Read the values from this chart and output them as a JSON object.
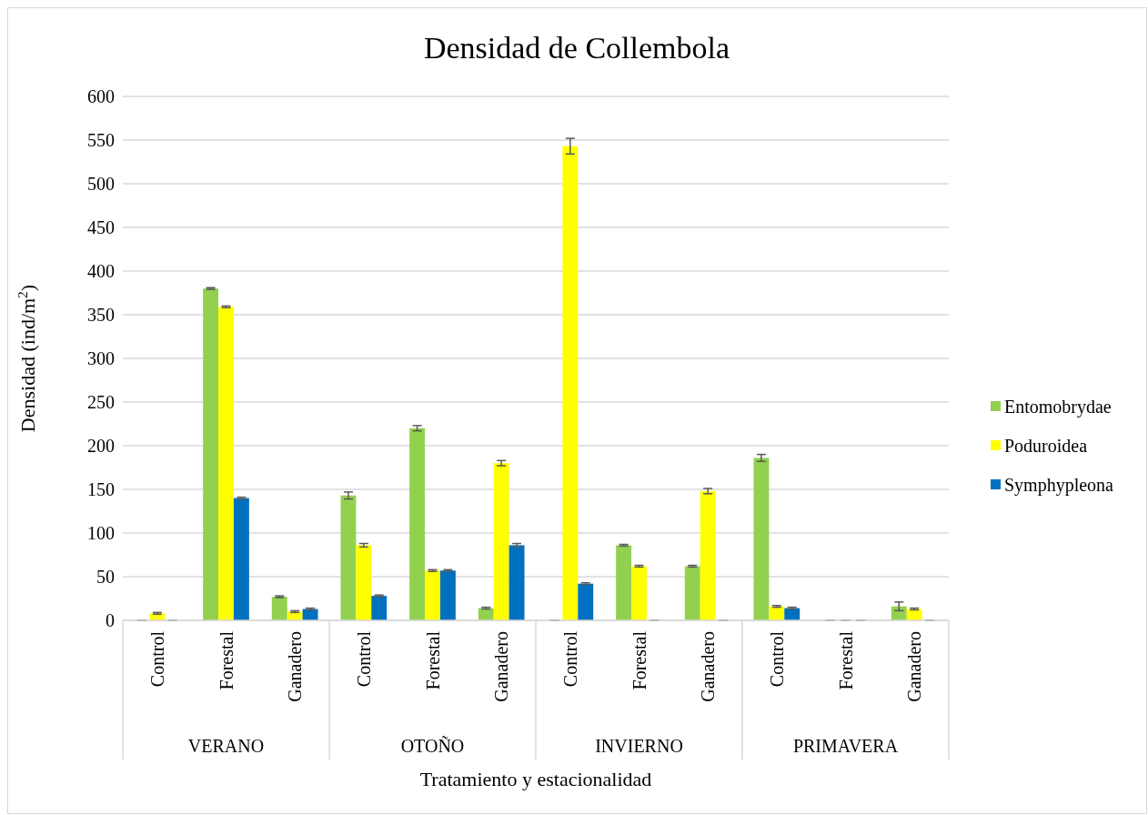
{
  "chart_data": {
    "type": "bar",
    "title": "Densidad de Collembola",
    "xlabel": "Tratamiento y estacionalidad",
    "ylabel": "Densidad (ind/m$^{2}$)",
    "categories": [
      "Control",
      "Forestal",
      "Ganadero",
      "Control",
      "Forestal",
      "Ganadero",
      "Control",
      "Forestal",
      "Ganadero",
      "Control",
      "Forestal",
      "Ganadero"
    ],
    "annotations": [
      "VERANO",
      "OTOÑO",
      "INVIERNO",
      "PRIMAVERA"
    ],
    "series": [
      {
        "name": "Entomobrydae",
        "color": "#92d050",
        "values": [
          0,
          380,
          27,
          143,
          220,
          14,
          0,
          86,
          62,
          186,
          0,
          16
        ],
        "errors": [
          0,
          1,
          1,
          4,
          3,
          1,
          0,
          1,
          1,
          4,
          0,
          5
        ]
      },
      {
        "name": "Poduroidea",
        "color": "#ffff00",
        "values": [
          8,
          359,
          10,
          86,
          57,
          180,
          543,
          62,
          148,
          16,
          0,
          13
        ],
        "errors": [
          1,
          1,
          1,
          2,
          1,
          3,
          9,
          1,
          3,
          1,
          0,
          1
        ]
      },
      {
        "name": "Symphypleona",
        "color": "#0070c0",
        "values": [
          0,
          140,
          13,
          28,
          57,
          86,
          42,
          0,
          0,
          14,
          0,
          0
        ],
        "errors": [
          0,
          1,
          1,
          1,
          1,
          2,
          1,
          0,
          0,
          1,
          0,
          0
        ]
      }
    ],
    "ylim": [
      0,
      600
    ],
    "yticks": [
      0,
      50,
      100,
      150,
      200,
      250,
      300,
      350,
      400,
      450,
      500,
      550,
      600
    ],
    "grid": "y",
    "legend": "right"
  }
}
